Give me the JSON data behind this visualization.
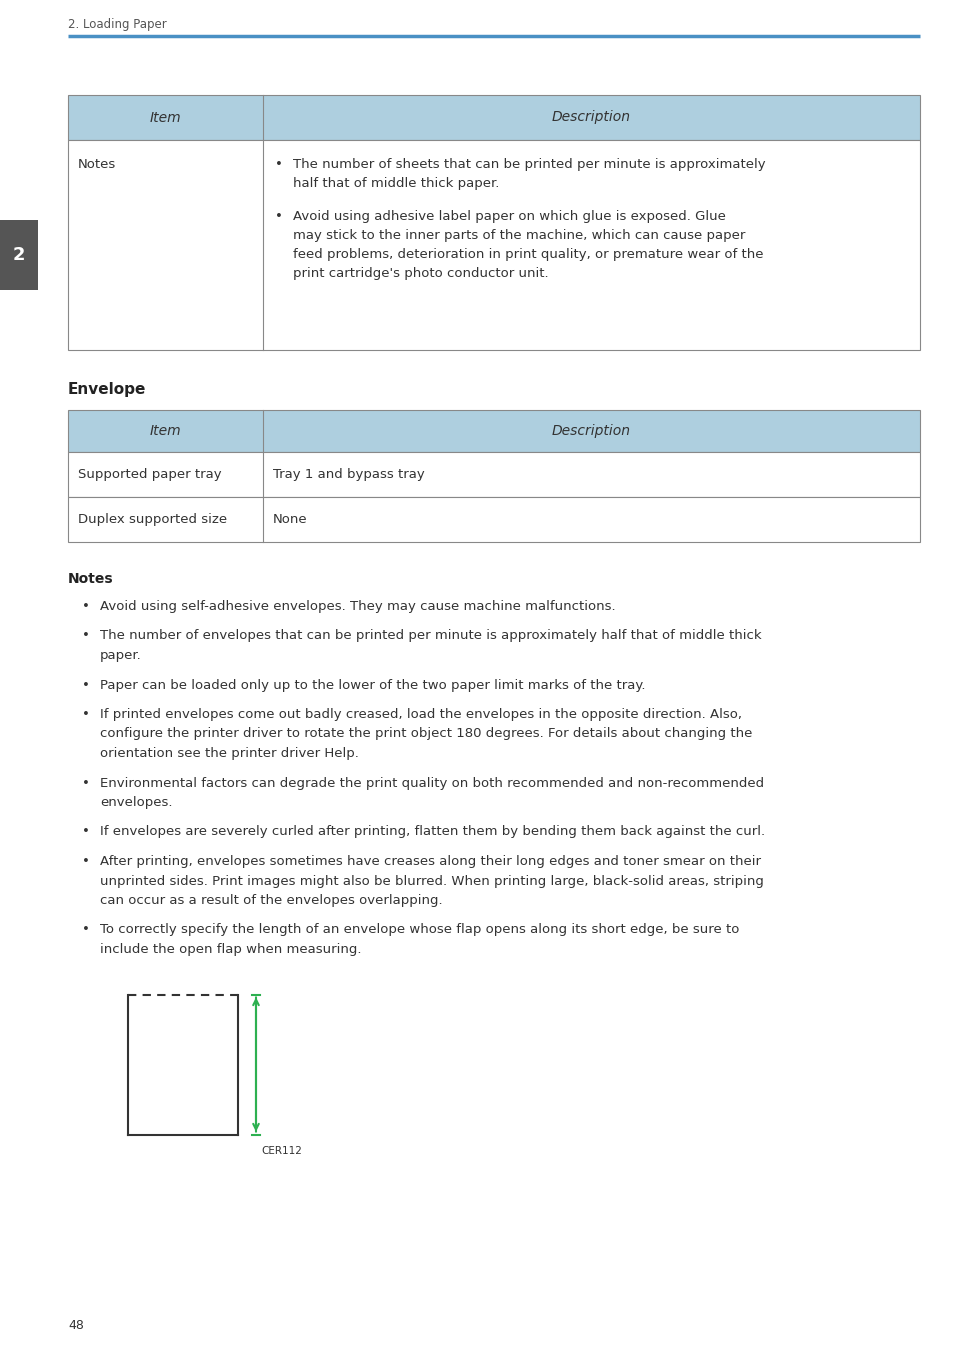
{
  "page_title": "2. Loading Paper",
  "page_number": "48",
  "chapter_number": "2",
  "top_rule_color": "#4a90c4",
  "header_bg_color": "#aecfdf",
  "table_border_color": "#888888",
  "table_text_color": "#333333",
  "body_text_color": "#333333",
  "bold_color": "#222222",
  "bg_color": "#ffffff",
  "chapter_tab_color": "#555555",
  "table1": {
    "col1_header": "Item",
    "col2_header": "Description",
    "rows": [
      {
        "col1": "Notes",
        "col2_bullets": [
          "The number of sheets that can be printed per minute is approximately\nhalf that of middle thick paper.",
          "Avoid using adhesive label paper on which glue is exposed. Glue\nmay stick to the inner parts of the machine, which can cause paper\nfeed problems, deterioration in print quality, or premature wear of the\nprint cartridge's photo conductor unit."
        ]
      }
    ]
  },
  "section_title": "Envelope",
  "table2": {
    "col1_header": "Item",
    "col2_header": "Description",
    "rows": [
      {
        "col1": "Supported paper tray",
        "col2": "Tray 1 and bypass tray"
      },
      {
        "col1": "Duplex supported size",
        "col2": "None"
      }
    ]
  },
  "notes_title": "Notes",
  "notes_bullets": [
    "Avoid using self-adhesive envelopes. They may cause machine malfunctions.",
    "The number of envelopes that can be printed per minute is approximately half that of middle thick\npaper.",
    "Paper can be loaded only up to the lower of the two paper limit marks of the tray.",
    "If printed envelopes come out badly creased, load the envelopes in the opposite direction. Also,\nconfigure the printer driver to rotate the print object 180 degrees. For details about changing the\norientation see the printer driver Help.",
    "Environmental factors can degrade the print quality on both recommended and non-recommended\nenvelopes.",
    "If envelopes are severely curled after printing, flatten them by bending them back against the curl.",
    "After printing, envelopes sometimes have creases along their long edges and toner smear on their\nunprinted sides. Print images might also be blurred. When printing large, black-solid areas, striping\ncan occur as a result of the envelopes overlapping.",
    "To correctly specify the length of an envelope whose flap opens along its short edge, be sure to\ninclude the open flap when measuring."
  ],
  "envelope_arrow_color": "#2db050",
  "envelope_label": "CER112"
}
